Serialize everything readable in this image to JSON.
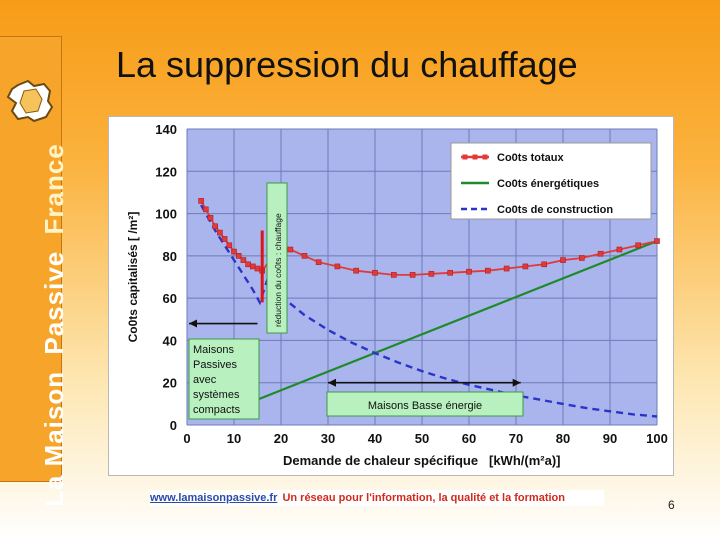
{
  "slide": {
    "title": "La suppression du chauffage",
    "page_number": "6"
  },
  "brand": {
    "word1": "La Maison",
    "word2": "Passive",
    "word3": "France",
    "colors": {
      "word1": "#ffffff",
      "word2": "#ffffff",
      "word3": "#fff4c8"
    }
  },
  "footer": {
    "url": "www.lamaisonpassive.fr",
    "tagline": "Un réseau pour l'information, la qualité et la formation"
  },
  "chart_data": {
    "type": "line",
    "xlabel": "Demande de chaleur spécifique",
    "xunit": "[kWh/(m²a)]",
    "ylabel": "Co0ts capitalisés  [  /m²]",
    "x_ticks": [
      0,
      10,
      20,
      30,
      40,
      50,
      60,
      70,
      80,
      90,
      100
    ],
    "y_ticks": [
      0,
      20,
      40,
      60,
      80,
      100,
      120,
      140
    ],
    "xlim": [
      0,
      100
    ],
    "ylim": [
      0,
      140
    ],
    "grid": true,
    "plot_background": "#a9b5ec",
    "legend_position": "top-right",
    "series": [
      {
        "name": "Co0ts totaux",
        "color": "#e23a3a",
        "style": "line-markers",
        "x": [
          3,
          4,
          5,
          6,
          7,
          8,
          9,
          10,
          11,
          12,
          13,
          14,
          15,
          16,
          18,
          20,
          22,
          25,
          28,
          32,
          36,
          40,
          44,
          48,
          52,
          56,
          60,
          64,
          68,
          72,
          76,
          80,
          84,
          88,
          92,
          96,
          100
        ],
        "values": [
          106,
          102,
          98,
          94,
          91,
          88,
          85,
          82,
          80,
          78,
          76,
          75,
          74,
          73,
          79,
          84,
          83,
          80,
          77,
          75,
          73,
          72,
          71,
          71,
          71.5,
          72,
          72.5,
          73,
          74,
          75,
          76,
          78,
          79,
          81,
          83,
          85,
          87
        ]
      },
      {
        "name": "Co0ts énergétiques",
        "color": "#1f8a2b",
        "style": "solid",
        "x": [
          15,
          100
        ],
        "values": [
          12,
          87
        ]
      },
      {
        "name": "Co0ts de construction",
        "color": "#2a34c8",
        "style": "dashed",
        "x": [
          3,
          6,
          10,
          14,
          15.5,
          17,
          20,
          25,
          30,
          35,
          40,
          45,
          50,
          55,
          60,
          65,
          70,
          75,
          80,
          85,
          90,
          95,
          100
        ],
        "values": [
          104,
          92,
          78,
          64,
          58,
          68,
          61,
          52,
          45,
          39,
          34,
          29.5,
          25.5,
          22,
          19,
          16.5,
          14,
          12,
          10,
          8,
          6.5,
          5,
          4
        ]
      }
    ],
    "annotations": {
      "heating_cut": {
        "text": "réduction du co0ts : chauffage",
        "x": 16,
        "y_from": 92,
        "y_to": 58,
        "color": "#d81818"
      },
      "passive_label": {
        "lines": [
          "Maisons",
          "Passives",
          "avec",
          "systèmes",
          "compacts"
        ],
        "x_from": 0,
        "x_to": 15,
        "y": 48
      },
      "low_energy_label": {
        "text": "Maisons Basse énergie",
        "x_from": 30,
        "x_to": 71,
        "y": 20
      }
    },
    "label_box_color": "#b9f0c0"
  }
}
